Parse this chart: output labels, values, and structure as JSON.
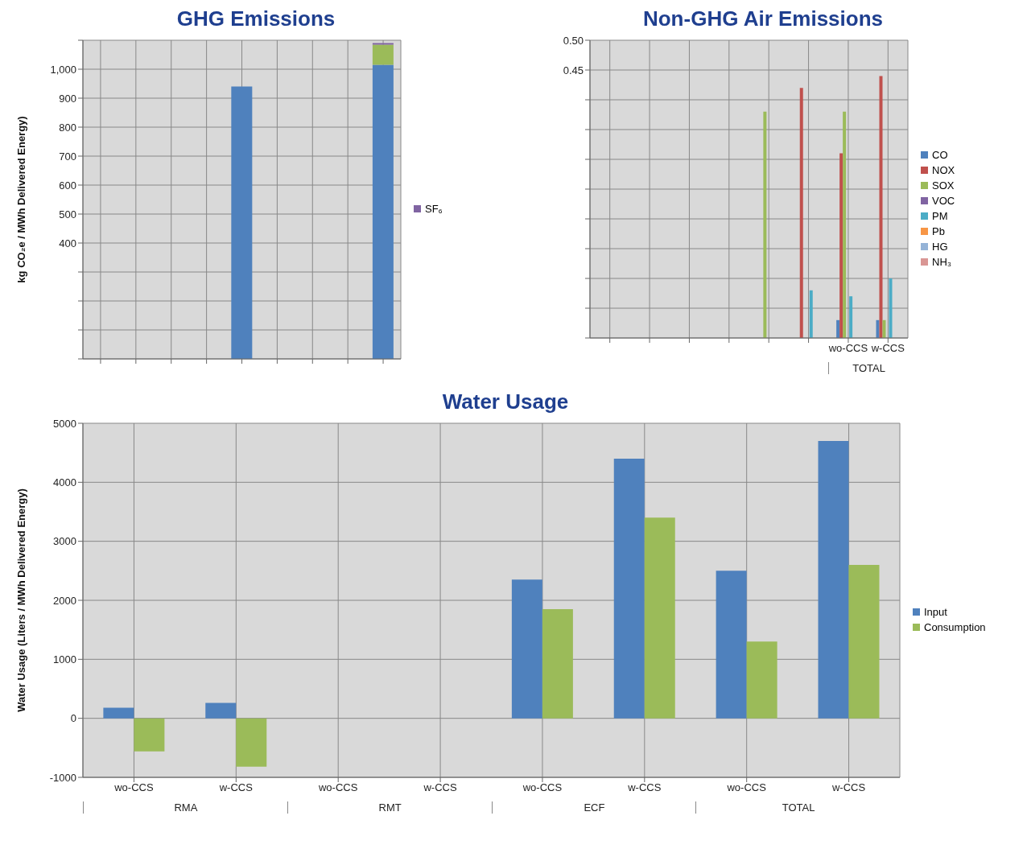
{
  "chart_data": [
    {
      "type": "bar",
      "title": "GHG Emissions",
      "ylabel": "kg CO₂e / MWh Delivered Energy)",
      "categories": [
        null,
        null,
        null,
        null,
        null,
        null,
        null,
        null,
        null
      ],
      "stacked": true,
      "series": [
        {
          "color": "#4f81bd",
          "values": [
            null,
            null,
            null,
            null,
            940,
            null,
            null,
            null,
            1015
          ]
        },
        {
          "color": "#9bbb59",
          "values": [
            null,
            null,
            null,
            null,
            null,
            null,
            null,
            null,
            70
          ]
        },
        {
          "name": "SF₆",
          "color": "#8064a2",
          "values": [
            null,
            null,
            null,
            null,
            null,
            null,
            null,
            null,
            5
          ]
        }
      ],
      "ylim": [
        0,
        1100
      ],
      "yticks": [
        {
          "value": 0,
          "label": null
        },
        {
          "value": 100,
          "label": null
        },
        {
          "value": 200,
          "label": null
        },
        {
          "value": 300,
          "label": null
        },
        400,
        500,
        600,
        700,
        800,
        900,
        {
          "value": 1000,
          "label": "1,000"
        },
        {
          "value": 1100,
          "label": null
        }
      ],
      "grid": true,
      "legend": "right"
    },
    {
      "type": "bar",
      "title": "Non-GHG Air Emissions",
      "categories": [
        null,
        null,
        null,
        null,
        null,
        null,
        "wo-CCS",
        "w-CCS"
      ],
      "annotations": [
        "TOTAL"
      ],
      "series": [
        {
          "name": "CO",
          "color": "#4f81bd",
          "values": [
            null,
            null,
            null,
            null,
            null,
            null,
            0.03,
            0.03
          ]
        },
        {
          "name": "NOX",
          "color": "#c0504d",
          "values": [
            null,
            null,
            null,
            null,
            null,
            0.42,
            0.31,
            0.44
          ]
        },
        {
          "name": "SOX",
          "color": "#9bbb59",
          "values": [
            null,
            null,
            null,
            null,
            0.38,
            null,
            0.38,
            0.03
          ]
        },
        {
          "name": "VOC",
          "color": "#8064a2",
          "values": [
            null,
            null,
            null,
            null,
            null,
            null,
            0,
            0
          ]
        },
        {
          "name": "PM",
          "color": "#4bacc6",
          "values": [
            null,
            null,
            null,
            null,
            null,
            0.08,
            0.07,
            0.1
          ]
        },
        {
          "name": "Pb",
          "color": "#f79646",
          "values": [
            null,
            null,
            null,
            null,
            null,
            null,
            0,
            0
          ]
        },
        {
          "name": "HG",
          "color": "#95b3d7",
          "values": [
            null,
            null,
            null,
            null,
            null,
            null,
            0,
            0
          ]
        },
        {
          "name": "NH₃",
          "color": "#d99694",
          "values": [
            null,
            null,
            null,
            null,
            null,
            null,
            0,
            0
          ]
        }
      ],
      "ylim": [
        0,
        0.5
      ],
      "yticks": [
        {
          "value": 0,
          "label": null
        },
        {
          "value": 0.05,
          "label": null
        },
        {
          "value": 0.1,
          "label": null
        },
        {
          "value": 0.15,
          "label": null
        },
        {
          "value": 0.2,
          "label": null
        },
        {
          "value": 0.25,
          "label": null
        },
        {
          "value": 0.3,
          "label": null
        },
        {
          "value": 0.35,
          "label": null
        },
        {
          "value": 0.4,
          "label": null
        },
        {
          "value": 0.45,
          "label": "0.45"
        },
        {
          "value": 0.5,
          "label": "0.50"
        }
      ],
      "grid": true,
      "legend": "right"
    },
    {
      "type": "bar",
      "title": "Water Usage",
      "ylabel": "Water Usage (Liters / MWh Delivered Energy)",
      "categories": [
        "wo-CCS",
        "w-CCS",
        "wo-CCS",
        "w-CCS",
        "wo-CCS",
        "w-CCS",
        "wo-CCS",
        "w-CCS"
      ],
      "annotations": [
        "RMA",
        "RMT",
        "ECF",
        "TOTAL"
      ],
      "series": [
        {
          "name": "Input",
          "color": "#4f81bd",
          "values": [
            180,
            260,
            0,
            0,
            2350,
            4400,
            2500,
            4700
          ]
        },
        {
          "name": "Consumption",
          "color": "#9bbb59",
          "values": [
            -560,
            -820,
            0,
            0,
            1850,
            3400,
            1300,
            2600
          ]
        }
      ],
      "ylim": [
        -1000,
        5000
      ],
      "yticks": [
        -1000,
        0,
        1000,
        2000,
        3000,
        4000,
        5000
      ],
      "grid": true,
      "legend": "right"
    }
  ]
}
